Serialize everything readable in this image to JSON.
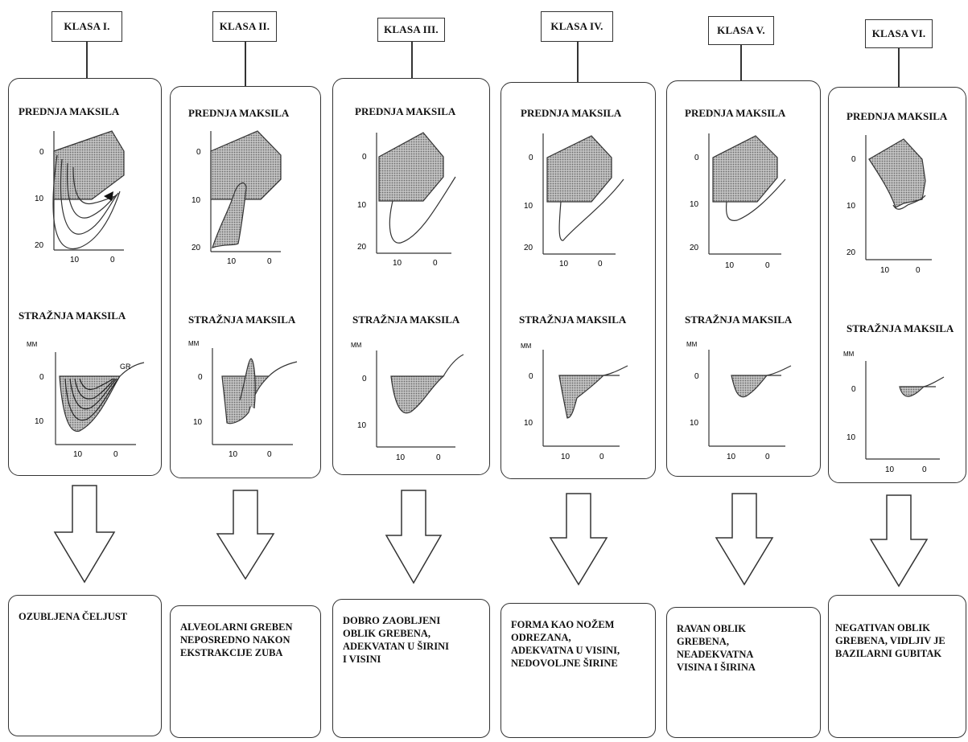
{
  "classes": [
    {
      "title": "KLASA I.",
      "front_label": "PREDNJA MAKSILA",
      "back_label": "STRAŽNJA MAKSILA",
      "front_y_ticks": [
        "0",
        "10",
        "20"
      ],
      "front_x_ticks": [
        "10",
        "0"
      ],
      "back_unit": "MM",
      "back_y_ticks": [
        "0",
        "10"
      ],
      "back_x_ticks": [
        "10",
        "0"
      ],
      "back_annotation": "GR",
      "description": [
        "OZUBLJENA ČELJUST"
      ]
    },
    {
      "title": "KLASA II.",
      "front_label": "PREDNJA MAKSILA",
      "back_label": "STRAŽNJA MAKSILA",
      "front_y_ticks": [
        "0",
        "10",
        "20"
      ],
      "front_x_ticks": [
        "10",
        "0"
      ],
      "back_unit": "MM",
      "back_y_ticks": [
        "0",
        "10"
      ],
      "back_x_ticks": [
        "10",
        "0"
      ],
      "description": [
        "ALVEOLARNI GREBEN",
        "NEPOSREDNO NAKON",
        "EKSTRAKCIJE ZUBA"
      ]
    },
    {
      "title": "KLASA III.",
      "front_label": "PREDNJA MAKSILA",
      "back_label": "STRAŽNJA MAKSILA",
      "front_y_ticks": [
        "0",
        "10",
        "20"
      ],
      "front_x_ticks": [
        "10",
        "0"
      ],
      "back_unit": "MM",
      "back_y_ticks": [
        "0",
        "10"
      ],
      "back_x_ticks": [
        "10",
        "0"
      ],
      "description": [
        "DOBRO ZAOBLJENI",
        "OBLIK GREBENA,",
        "ADEKVATAN U ŠIRINI",
        "I VISINI"
      ]
    },
    {
      "title": "KLASA IV.",
      "front_label": "PREDNJA MAKSILA",
      "back_label": "STRAŽNJA MAKSILA",
      "front_y_ticks": [
        "0",
        "10",
        "20"
      ],
      "front_x_ticks": [
        "10",
        "0"
      ],
      "back_unit": "MM",
      "back_y_ticks": [
        "0",
        "10"
      ],
      "back_x_ticks": [
        "10",
        "0"
      ],
      "description": [
        "FORMA KAO NOŽEM",
        "ODREZANA,",
        "ADEKVATNA U VISINI,",
        "NEDOVOLJNE ŠIRINE"
      ]
    },
    {
      "title": "KLASA V.",
      "front_label": "PREDNJA MAKSILA",
      "back_label": "STRAŽNJA MAKSILA",
      "front_y_ticks": [
        "0",
        "10",
        "20"
      ],
      "front_x_ticks": [
        "10",
        "0"
      ],
      "back_unit": "MM",
      "back_y_ticks": [
        "0",
        "10"
      ],
      "back_x_ticks": [
        "10",
        "0"
      ],
      "description": [
        "RAVAN OBLIK",
        "GREBENA,",
        "NEADEKVATNA",
        "VISINA I ŠIRINA"
      ]
    },
    {
      "title": "KLASA VI.",
      "front_label": "PREDNJA MAKSILA",
      "back_label": "STRAŽNJA MAKSILA",
      "front_y_ticks": [
        "0",
        "10",
        "20"
      ],
      "front_x_ticks": [
        "10",
        "0"
      ],
      "back_unit": "MM",
      "back_y_ticks": [
        "0",
        "10"
      ],
      "back_x_ticks": [
        "10",
        "0"
      ],
      "description": [
        "NEGATIVAN OBLIK",
        "GREBENA, VIDLJIV JE",
        "BAZILARNI GUBITAK"
      ]
    }
  ],
  "colors": {
    "line": "#333333",
    "hatch": "#9a9a9a",
    "background": "#ffffff"
  }
}
